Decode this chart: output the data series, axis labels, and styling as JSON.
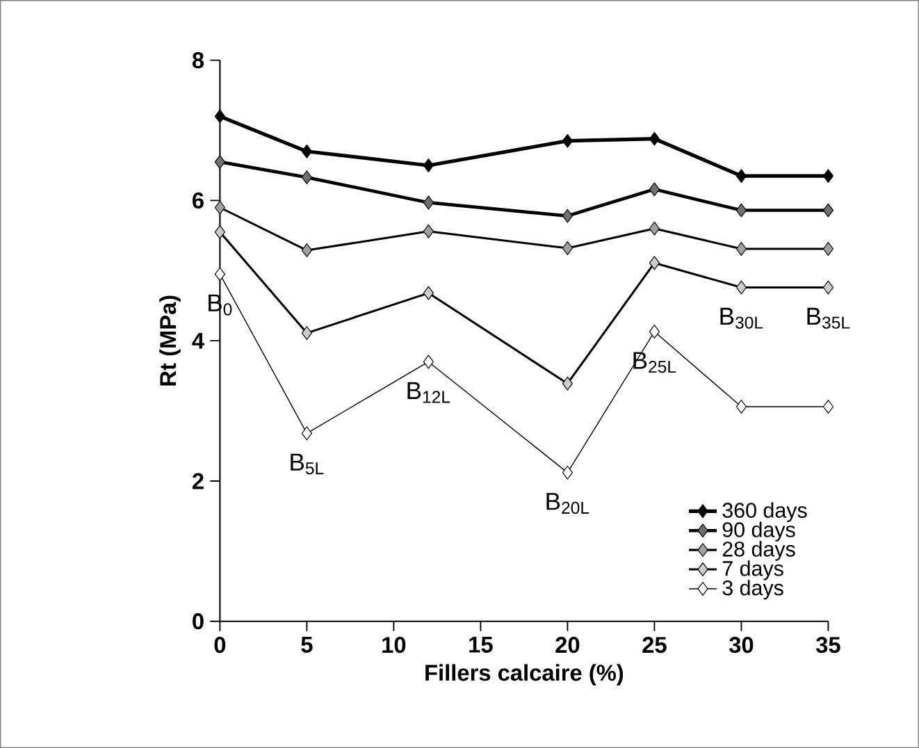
{
  "chart_data": {
    "type": "line",
    "xlabel": "Fillers calcaire (%)",
    "ylabel": "Rt  (MPa)",
    "x": [
      0,
      5,
      12,
      20,
      25,
      30,
      35
    ],
    "series": [
      {
        "name": "360 days",
        "color": "#000000",
        "values": [
          7.2,
          6.7,
          6.5,
          6.85,
          6.88,
          6.35,
          6.35
        ]
      },
      {
        "name": "90 days",
        "color": "#707070",
        "values": [
          6.55,
          6.33,
          5.97,
          5.78,
          6.16,
          5.86,
          5.86
        ]
      },
      {
        "name": "28 days",
        "color": "#a0a0a0",
        "values": [
          5.9,
          5.29,
          5.56,
          5.32,
          5.6,
          5.31,
          5.31
        ]
      },
      {
        "name": "7 days",
        "color": "#cccccc",
        "values": [
          5.55,
          4.11,
          4.68,
          3.39,
          5.11,
          4.76,
          4.76
        ]
      },
      {
        "name": "3 days",
        "color": "#ffffff",
        "values": [
          4.95,
          2.68,
          3.7,
          2.12,
          4.13,
          3.06,
          3.06
        ]
      }
    ],
    "xlim": [
      0,
      35
    ],
    "xticks": [
      0,
      5,
      10,
      15,
      20,
      25,
      30,
      35
    ],
    "ylim": [
      0,
      8
    ],
    "yticks": [
      0,
      2,
      4,
      6,
      8
    ],
    "grid": false,
    "legend": "bottom right",
    "marker": "diamond",
    "line_style": "solid",
    "annotations": [
      {
        "text": "B$_{0}$",
        "x": 0,
        "y": 4.95
      },
      {
        "text": "B$_{5L}$",
        "x": 5,
        "y": 2.68
      },
      {
        "text": "B$_{12L}$",
        "x": 12,
        "y": 3.7
      },
      {
        "text": "B$_{20L}$",
        "x": 20,
        "y": 2.12
      },
      {
        "text": "B$_{25L}$",
        "x": 25,
        "y": 4.13
      },
      {
        "text": "B$_{30L}$",
        "x": 30,
        "y": 4.76
      },
      {
        "text": "B$_{35L}$",
        "x": 35,
        "y": 4.76
      }
    ]
  }
}
